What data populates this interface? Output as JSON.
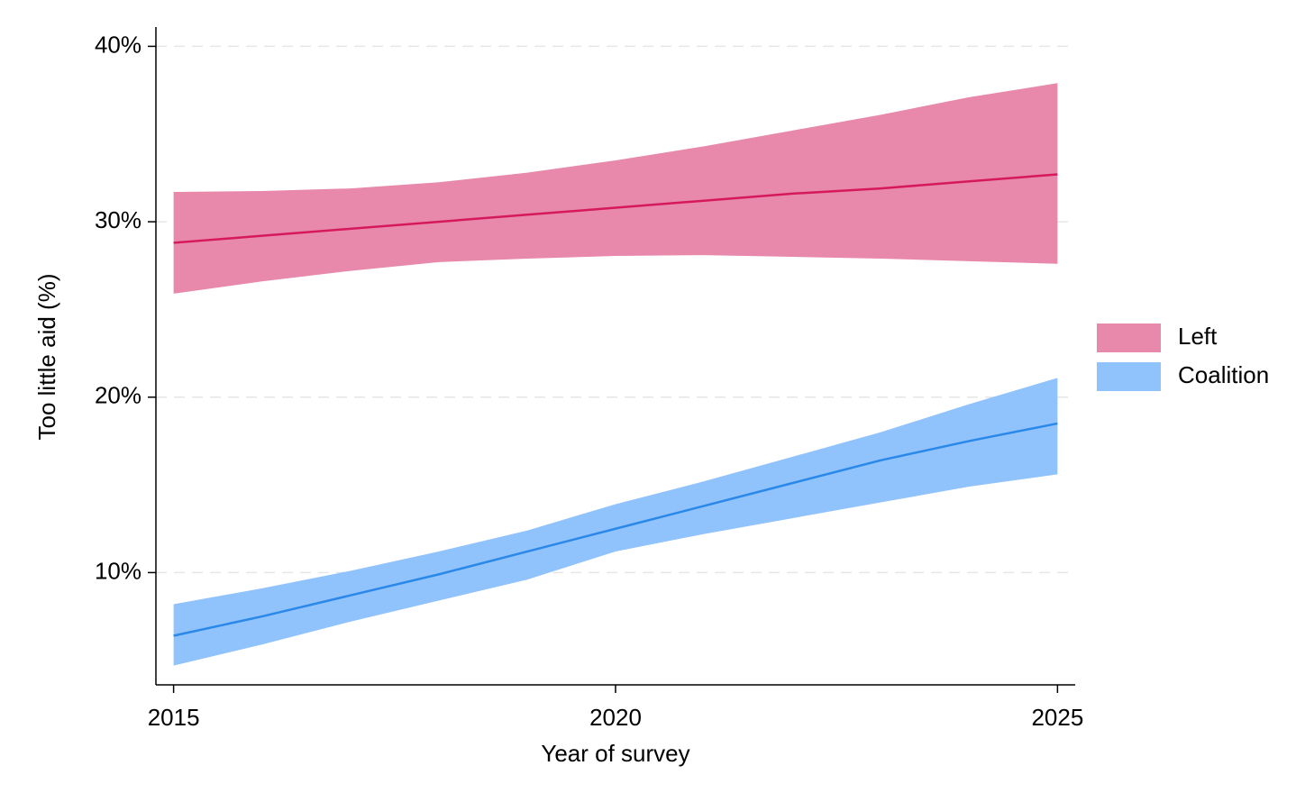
{
  "chart_data": {
    "type": "line_band",
    "xlabel": "Year of survey",
    "ylabel": "Too little aid (%)",
    "x": [
      2015,
      2016,
      2017,
      2018,
      2019,
      2020,
      2021,
      2022,
      2023,
      2024,
      2025
    ],
    "series": [
      {
        "name": "Left",
        "color": "#d6185c",
        "band_color": "#e888aa",
        "values": [
          28.8,
          29.2,
          29.6,
          30.0,
          30.4,
          30.8,
          31.2,
          31.6,
          31.9,
          32.3,
          32.7
        ],
        "lower": [
          25.9,
          26.6,
          27.2,
          27.7,
          27.9,
          28.05,
          28.1,
          28.0,
          27.9,
          27.75,
          27.6
        ],
        "upper": [
          31.7,
          31.75,
          31.9,
          32.25,
          32.8,
          33.5,
          34.3,
          35.2,
          36.1,
          37.1,
          37.9
        ]
      },
      {
        "name": "Coalition",
        "color": "#2a88e8",
        "band_color": "#90c2fc",
        "values": [
          6.4,
          7.5,
          8.7,
          9.9,
          11.2,
          12.5,
          13.8,
          15.1,
          16.4,
          17.5,
          18.5
        ],
        "lower": [
          4.7,
          5.9,
          7.2,
          8.4,
          9.6,
          11.2,
          12.2,
          13.1,
          14.0,
          14.9,
          15.6
        ],
        "upper": [
          8.2,
          9.1,
          10.1,
          11.2,
          12.4,
          13.9,
          15.2,
          16.6,
          18.0,
          19.6,
          21.1
        ]
      }
    ],
    "xlim": [
      2014.8,
      2025.2
    ],
    "xticks": [
      2015,
      2020,
      2025
    ],
    "ylim": [
      3.6,
      41.1
    ],
    "yticks": [
      {
        "value": 10,
        "label": "10%"
      },
      {
        "value": 20,
        "label": "20%"
      },
      {
        "value": 30,
        "label": "30%"
      },
      {
        "value": 40,
        "label": "40%"
      }
    ],
    "grid": true,
    "legend": "right"
  }
}
